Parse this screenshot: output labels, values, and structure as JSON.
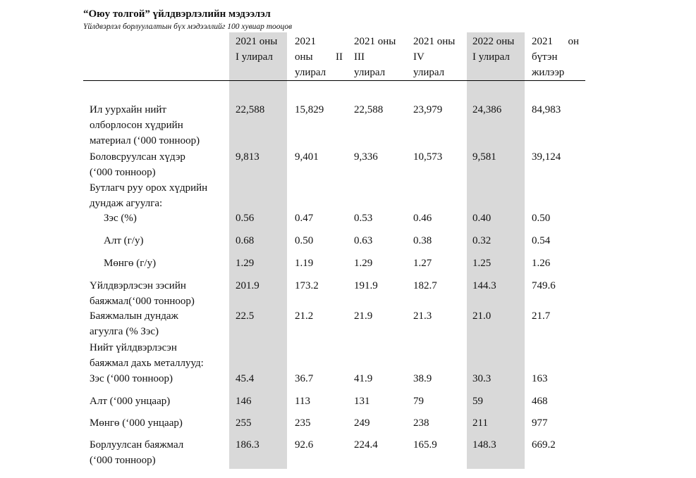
{
  "title": "“Оюу толгой” үйлдвэрлэлийн мэдээлэл",
  "subtitle": "Үйлдвэрлэл борлуулалтын бүх мэдээллийг 100 хувиар тооцов",
  "columns": [
    {
      "line1": "2021 оны",
      "line2": "I улирал",
      "line3": ""
    },
    {
      "line1": "2021",
      "line2a": "оны",
      "line2b": "II",
      "line3": "улирал"
    },
    {
      "line1": "2021 оны",
      "line2": "III",
      "line3": "улирал"
    },
    {
      "line1": "2021 оны",
      "line2": "IV",
      "line3": "улирал"
    },
    {
      "line1": "2022 оны",
      "line2": "I улирал",
      "line3": ""
    },
    {
      "line1a": "2021",
      "line1b": "он",
      "line2": "бүтэн",
      "line3": "жилээр"
    }
  ],
  "rows": {
    "material": {
      "label1": "Ил уурхайн нийт",
      "label2": "олборлосон хүдрийн",
      "label3": "материал (‘000 тонноор)",
      "values": [
        "22,588",
        "15,829",
        "22,588",
        "23,979",
        "24,386",
        "84,983"
      ]
    },
    "ore": {
      "label1": "Боловсруулсан хүдэр",
      "label2": "(‘000 тонноор)",
      "values": [
        "9,813",
        "9,401",
        "9,336",
        "10,573",
        "9,581",
        "39,124"
      ]
    },
    "grade_header": {
      "label1": "Бутлагч руу орох хүдрийн",
      "label2": "дундаж агуулга:"
    },
    "cu_grade": {
      "label": "Зэс (%)",
      "values": [
        "0.56",
        "0.47",
        "0.53",
        "0.46",
        "0.40",
        "0.50"
      ]
    },
    "au_grade": {
      "label": "Алт (г/у)",
      "values": [
        "0.68",
        "0.50",
        "0.63",
        "0.38",
        "0.32",
        "0.54"
      ]
    },
    "ag_grade": {
      "label": "Мөнгө (г/у)",
      "values": [
        "1.29",
        "1.19",
        "1.29",
        "1.27",
        "1.25",
        "1.26"
      ]
    },
    "concentrate": {
      "label1": "Үйлдвэрлэсэн зэсийн",
      "label2": "баяжмал(‘000 тонноор)",
      "values": [
        "201.9",
        "173.2",
        "191.9",
        "182.7",
        "144.3",
        "749.6"
      ]
    },
    "conc_grade": {
      "label1": "Баяжмалын дундаж",
      "label2": "агуулга (% Зэс)",
      "values": [
        "22.5",
        "21.2",
        "21.9",
        "21.3",
        "21.0",
        "21.7"
      ]
    },
    "metals_header": {
      "label1": "Нийт үйлдвэрлэсэн",
      "label2": "баяжмал дахь металлууд:"
    },
    "cu_metal": {
      "label": "Зэс (‘000 тонноор)",
      "values": [
        "45.4",
        "36.7",
        "41.9",
        "38.9",
        "30.3",
        "163"
      ]
    },
    "au_metal": {
      "label": "Алт (‘000 унцаар)",
      "values": [
        "146",
        "113",
        "131",
        "79",
        "59",
        "468"
      ]
    },
    "ag_metal": {
      "label": "Мөнгө (‘000 унцаар)",
      "values": [
        "255",
        "235",
        "249",
        "238",
        "211",
        "977"
      ]
    },
    "sold": {
      "label1": "Борлуулсан баяжмал",
      "label2": "(‘000 тонноор)",
      "values": [
        "186.3",
        "92.6",
        "224.4",
        "165.9",
        "148.3",
        "669.2"
      ]
    }
  }
}
